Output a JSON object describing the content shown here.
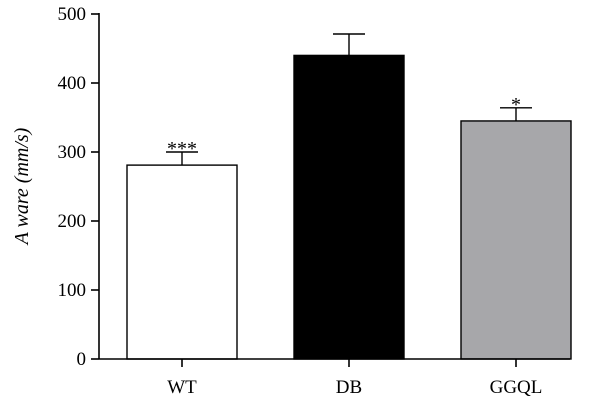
{
  "chart_data": {
    "type": "bar",
    "title": "",
    "xlabel": "",
    "ylabel": "A ware (mm/s)",
    "ylim": [
      0,
      500
    ],
    "yticks": [
      0,
      100,
      200,
      300,
      400,
      500
    ],
    "categories": [
      "WT",
      "DB",
      "GGQL"
    ],
    "values": [
      281,
      440,
      345
    ],
    "error_upper": [
      19,
      31,
      19
    ],
    "annotations": [
      "***",
      "",
      "*"
    ],
    "bar_colors": [
      "#ffffff",
      "#000000",
      "#a7a7aa"
    ],
    "bar_edge_color": "#000000",
    "grid": false,
    "legend": "none"
  }
}
